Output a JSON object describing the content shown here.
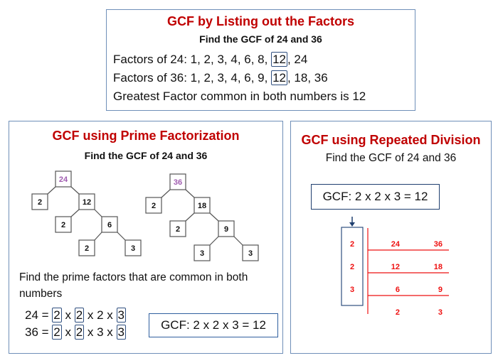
{
  "listing": {
    "title": "GCF by Listing out the Factors",
    "subtitle": "Find the GCF of 24 and 36",
    "row1": {
      "prefix": "Factors of 24: 1, 2, 3, 4, 6, 8, ",
      "hl": "12",
      "suffix": ", 24"
    },
    "row2": {
      "prefix": "Factors of 36: 1, 2, 3, 4, 6, 9, ",
      "hl": "12",
      "suffix": ", 18, 36"
    },
    "conclusion": "Greatest Factor common in both numbers is 12"
  },
  "prime": {
    "title": "GCF using Prime Factorization",
    "subtitle": "Find the GCF of 24 and 36",
    "tree1": [
      "24",
      "2",
      "12",
      "2",
      "6",
      "2",
      "3"
    ],
    "tree2": [
      "36",
      "2",
      "18",
      "2",
      "9",
      "3",
      "3"
    ],
    "root_color": "#a05cb0",
    "instruction": "Find the prime factors that are common in both numbers",
    "eq1": {
      "lhs": "24 = ",
      "a": "2",
      "x1": " x ",
      "b": "2",
      "mid": " x 2 x ",
      "c": "3"
    },
    "eq2": {
      "lhs": "36 = ",
      "a": "2",
      "x1": " x ",
      "b": "2",
      "mid": " x 3 x ",
      "c": "3"
    },
    "result": "GCF: 2 x 2 x 3 = 12"
  },
  "division": {
    "title": "GCF using Repeated Division",
    "subtitle": "Find the GCF of 24 and 36",
    "result": "GCF: 2 x 2 x 3 = 12",
    "divisors": [
      "2",
      "2",
      "3"
    ],
    "rows": [
      [
        "24",
        "36"
      ],
      [
        "12",
        "18"
      ],
      [
        "6",
        "9"
      ],
      [
        "2",
        "3"
      ]
    ],
    "color": "#ee1111"
  }
}
